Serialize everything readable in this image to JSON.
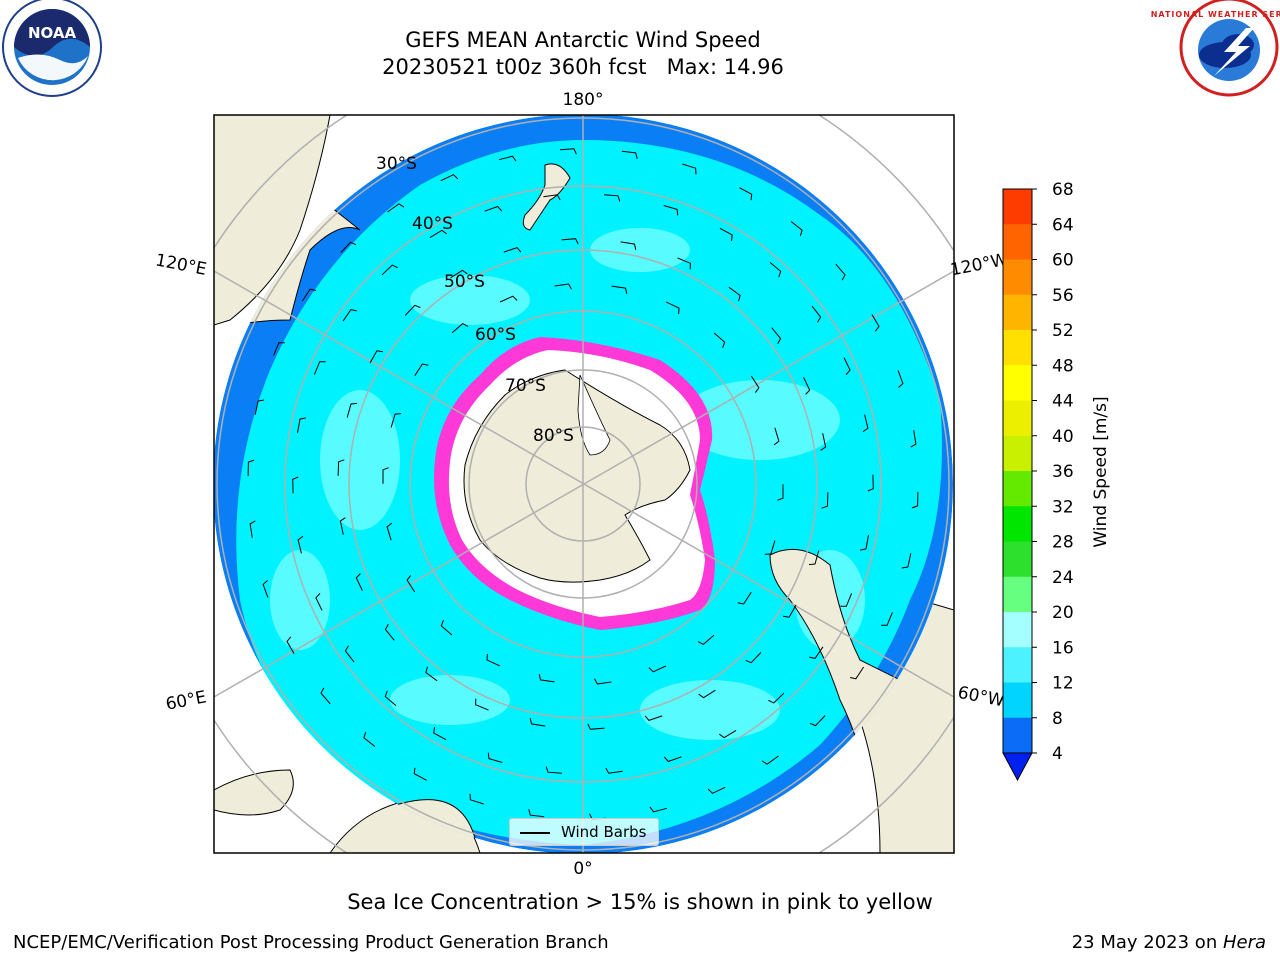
{
  "title_line1": "GEFS MEAN Antarctic Wind Speed",
  "title_line2": "20230521 t00z 360h fcst   Max: 14.96",
  "meridian_labels": {
    "top": "180°",
    "bottom": "0°",
    "left_upper": "120°E",
    "right_upper": "120°W",
    "left_lower": "60°E",
    "right_lower": "60°W"
  },
  "latitude_labels": [
    "30°S",
    "40°S",
    "50°S",
    "60°S",
    "70°S",
    "80°S"
  ],
  "legend": {
    "label": "Wind Barbs"
  },
  "colorbar": {
    "label": "Wind Speed [m/s]",
    "ticks": [
      "4",
      "8",
      "12",
      "16",
      "20",
      "24",
      "28",
      "32",
      "36",
      "40",
      "44",
      "48",
      "52",
      "56",
      "60",
      "64",
      "68"
    ],
    "colors": [
      "#0a6cf7",
      "#00d4ff",
      "#4cf2ff",
      "#a4ffff",
      "#66ff80",
      "#2de02d",
      "#00e600",
      "#64ea00",
      "#c8f000",
      "#ecf000",
      "#ffff00",
      "#ffe000",
      "#ffb400",
      "#ff8c00",
      "#ff6400",
      "#ff3c00"
    ],
    "under_color": "#0020f0",
    "top_color": "#ff1000"
  },
  "colors": {
    "outer_ocean": "#0a7ff5",
    "ocean": "#00f2ff",
    "ocean_light": "#62fcff",
    "land": "#efecda",
    "sea_ice_edge": "#ff38d8",
    "grid": "#b0b0b0"
  },
  "caption": "Sea Ice Concentration > 15% is shown in pink to yellow",
  "footer_left": "NCEP/EMC/Verification Post Processing Product Generation Branch",
  "footer_right_date": "23 May 2023 on ",
  "footer_right_host": "Hera",
  "logos": {
    "noaa": "NOAA",
    "nws": "NATIONAL WEATHER SERVICE"
  }
}
